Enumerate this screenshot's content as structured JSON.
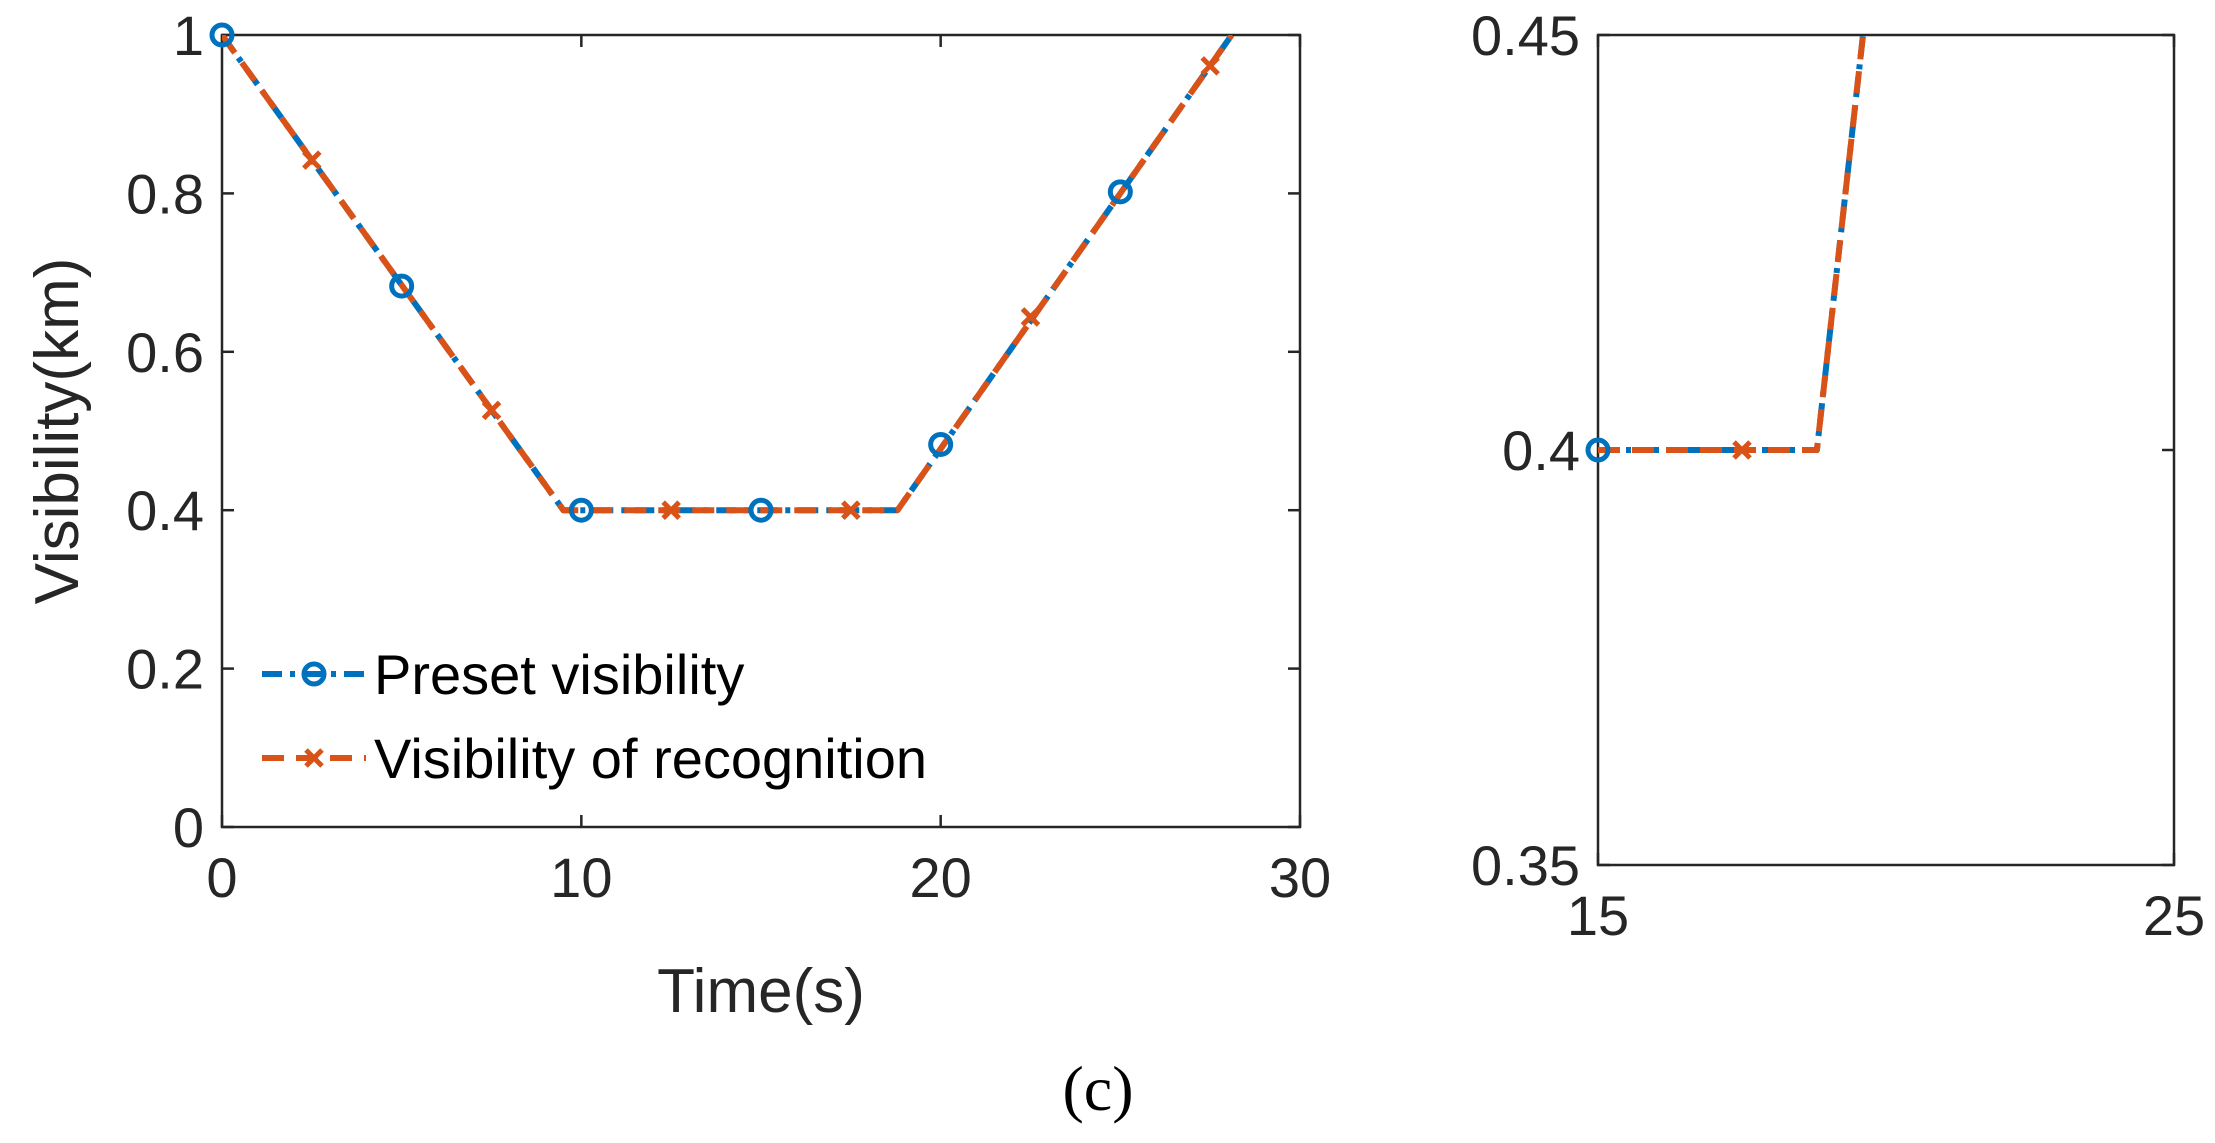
{
  "caption": "(c)",
  "colors": {
    "preset": "#0072BD",
    "recognition": "#D95319",
    "axis": "#262626"
  },
  "chart_data": [
    {
      "type": "line",
      "xlabel": "Time(s)",
      "ylabel": "Visibility(km)",
      "xlim": [
        0,
        30
      ],
      "ylim": [
        0,
        1
      ],
      "xticks": [
        0,
        10,
        20,
        30
      ],
      "xtick_labels": [
        "0",
        "10",
        "20",
        "30"
      ],
      "yticks": [
        0,
        0.2,
        0.4,
        0.6,
        0.8,
        1
      ],
      "ytick_labels": [
        "0",
        "0.2",
        "0.4",
        "0.6",
        "0.8",
        "1"
      ],
      "legend_position": "bottom-left",
      "series": [
        {
          "name": "Preset visibility",
          "style": "dash-dot",
          "marker": "circle",
          "x": [
            0,
            9.5,
            18.8,
            28.1
          ],
          "y": [
            1,
            0.4,
            0.4,
            1.0
          ],
          "marker_x": [
            0,
            5,
            10,
            15,
            20,
            25
          ],
          "marker_y": [
            1,
            0.683,
            0.4,
            0.4,
            0.483,
            0.802
          ]
        },
        {
          "name": "Visibility of recognition",
          "style": "dash",
          "marker": "x",
          "x": [
            0,
            9.5,
            18.8,
            28.1
          ],
          "y": [
            1,
            0.4,
            0.4,
            1.0
          ],
          "marker_x": [
            2.5,
            7.5,
            12.5,
            17.5,
            22.5,
            27.5
          ],
          "marker_y": [
            0.842,
            0.526,
            0.4,
            0.4,
            0.644,
            0.961
          ]
        }
      ]
    },
    {
      "type": "line",
      "xlabel": "",
      "ylabel": "",
      "xlim": [
        15,
        25
      ],
      "ylim": [
        0.35,
        0.45
      ],
      "xticks": [
        15,
        25
      ],
      "xtick_labels": [
        "15",
        "25"
      ],
      "yticks": [
        0.35,
        0.4,
        0.45
      ],
      "ytick_labels": [
        "0.35",
        "0.4",
        "0.45"
      ],
      "series": [
        {
          "name": "Preset visibility",
          "style": "dash-dot",
          "marker": "circle",
          "x": [
            15,
            18.8,
            19.6
          ],
          "y": [
            0.4,
            0.4,
            0.45
          ],
          "marker_x": [
            15
          ],
          "marker_y": [
            0.4
          ]
        },
        {
          "name": "Visibility of recognition",
          "style": "dash",
          "marker": "x",
          "x": [
            15,
            18.8,
            19.6
          ],
          "y": [
            0.4,
            0.4,
            0.45
          ],
          "marker_x": [
            17.5
          ],
          "marker_y": [
            0.4
          ]
        }
      ]
    }
  ]
}
